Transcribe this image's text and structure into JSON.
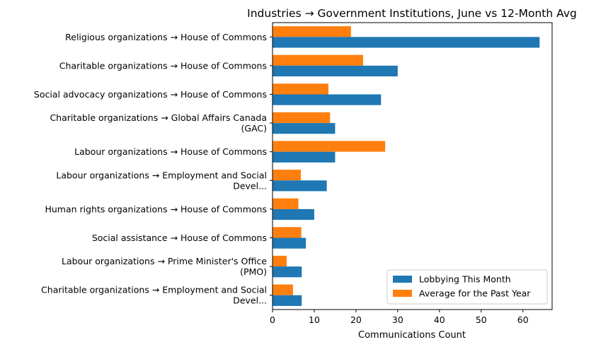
{
  "chart_data": {
    "type": "bar",
    "orientation": "horizontal",
    "title": "Industries → Government Institutions, June vs 12-Month Avg",
    "xlabel": "Communications Count",
    "ylabel": "",
    "xlim": [
      0,
      67
    ],
    "xticks": [
      0,
      10,
      20,
      30,
      40,
      50,
      60
    ],
    "grid": false,
    "legend_position": "lower-right",
    "categories": [
      [
        "Religious organizations → House of Commons"
      ],
      [
        "Charitable organizations → House of Commons"
      ],
      [
        "Social advocacy organizations → House of Commons"
      ],
      [
        "Charitable organizations → Global Affairs Canada",
        "(GAC)"
      ],
      [
        "Labour organizations → House of Commons"
      ],
      [
        "Labour organizations → Employment and Social",
        "Devel..."
      ],
      [
        "Human rights organizations → House of Commons"
      ],
      [
        "Social assistance → House of Commons"
      ],
      [
        "Labour organizations → Prime Minister's Office",
        "(PMO)"
      ],
      [
        "Charitable organizations → Employment and Social",
        "Devel..."
      ]
    ],
    "series": [
      {
        "name": "Lobbying This Month",
        "color": "#1f77b4",
        "values": [
          64,
          30,
          26,
          15,
          15,
          13,
          10,
          8,
          7,
          7
        ]
      },
      {
        "name": "Average for the Past Year",
        "color": "#ff7f0e",
        "values": [
          18.8,
          21.7,
          13.4,
          13.8,
          27,
          6.8,
          6.2,
          6.9,
          3.4,
          4.9
        ]
      }
    ]
  }
}
